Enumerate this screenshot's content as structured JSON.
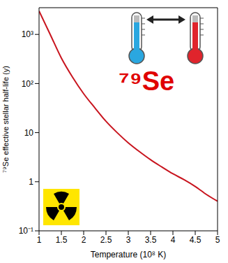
{
  "chart_data": {
    "type": "line",
    "x_label": "Temperature (10⁸ K)",
    "y_label": "⁷⁹Se effective stellar half-life (y)",
    "annotations": [
      "⁷⁹Se"
    ],
    "x": [
      1,
      1.25,
      1.5,
      1.75,
      2,
      2.25,
      2.5,
      2.75,
      3,
      3.25,
      3.5,
      3.75,
      4,
      4.25,
      4.5,
      4.75,
      5
    ],
    "values": [
      3000,
      1000,
      330,
      135,
      62,
      32,
      17,
      10,
      6.2,
      4.1,
      2.8,
      2.0,
      1.45,
      1.1,
      0.8,
      0.55,
      0.4
    ],
    "color": "#c8141e",
    "log": "y",
    "grid": false,
    "xlim": [
      1,
      5
    ],
    "xticks": [
      1,
      1.5,
      2,
      2.5,
      3,
      3.5,
      4,
      4.5,
      5
    ],
    "ylim": [
      0.1,
      3500
    ],
    "yticks": [
      {
        "value": 0.1,
        "label": "10⁻¹"
      },
      1,
      10,
      {
        "value": 100,
        "label": "10²"
      },
      {
        "value": 1000,
        "label": "10³"
      }
    ]
  }
}
